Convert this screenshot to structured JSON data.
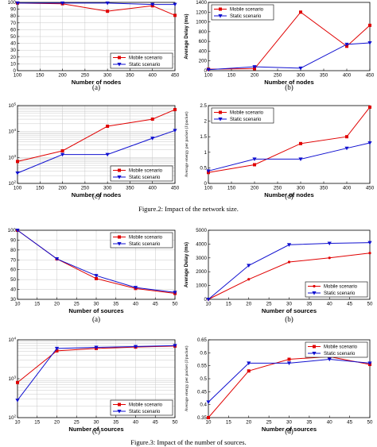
{
  "captions": {
    "figure2": "Figure.2:   Impact of the network size.",
    "figure3": "Figure.3:   Impact of the number of sources."
  },
  "colors": {
    "mobile": "#e00000",
    "static": "#1010d0",
    "grid": "#c8c8c8"
  },
  "chart_data": [
    {
      "type": "line",
      "panel": "(a)",
      "xlabel": "Number of nodes",
      "ylabel": "Packet Delivery Fraction (%)",
      "x": [
        100,
        200,
        300,
        400,
        450
      ],
      "xticks": [
        100,
        150,
        200,
        250,
        300,
        350,
        400,
        450
      ],
      "xlim": [
        100,
        450
      ],
      "ylim": [
        0,
        100
      ],
      "yticks": [
        0,
        10,
        20,
        30,
        40,
        50,
        60,
        70,
        80,
        90,
        100
      ],
      "yscale": "linear",
      "grid": true,
      "legend": "bottom-right",
      "series": [
        {
          "name": "Mobile scenario",
          "marker": "square",
          "color": "#e00000",
          "values": [
            99,
            98,
            87,
            95,
            81
          ]
        },
        {
          "name": "Static scenario",
          "marker": "tri-down",
          "color": "#1010d0",
          "values": [
            99,
            99,
            99,
            97,
            97
          ]
        }
      ]
    },
    {
      "type": "line",
      "panel": "(b)",
      "xlabel": "Number of nodes",
      "ylabel": "Average Delay (ms)",
      "x": [
        100,
        200,
        300,
        400,
        450
      ],
      "xticks": [
        100,
        150,
        200,
        250,
        300,
        350,
        400,
        450
      ],
      "xlim": [
        100,
        450
      ],
      "ylim": [
        0,
        1400
      ],
      "yticks": [
        0,
        200,
        400,
        600,
        800,
        1000,
        1200,
        1400
      ],
      "yscale": "linear",
      "grid": false,
      "legend": "top-left",
      "series": [
        {
          "name": "Mobile scenario",
          "marker": "square",
          "color": "#e00000",
          "values": [
            30,
            40,
            1200,
            500,
            930
          ]
        },
        {
          "name": "Static scenario",
          "marker": "tri-down",
          "color": "#1010d0",
          "values": [
            20,
            80,
            50,
            540,
            570
          ]
        }
      ]
    },
    {
      "type": "line",
      "panel": "(c)",
      "xlabel": "Number of nodes",
      "ylabel": "Routing Overheads (packets)",
      "x": [
        100,
        200,
        300,
        400,
        450
      ],
      "xticks": [
        100,
        150,
        200,
        250,
        300,
        350,
        400,
        450
      ],
      "xlim": [
        100,
        450
      ],
      "ylim": [
        100,
        100000
      ],
      "yticks_major": [
        100,
        1000,
        10000,
        100000
      ],
      "yticklabels": [
        "10^2",
        "10^3",
        "10^4",
        "10^5"
      ],
      "yscale": "log",
      "grid": true,
      "legend": "bottom-right",
      "series": [
        {
          "name": "Mobile scenario",
          "marker": "square",
          "color": "#e00000",
          "values": [
            700,
            1800,
            16000,
            30000,
            70000
          ]
        },
        {
          "name": "Static scenario",
          "marker": "tri-down",
          "color": "#1010d0",
          "values": [
            250,
            1300,
            1300,
            5500,
            11000
          ]
        }
      ]
    },
    {
      "type": "line",
      "panel": "(d)",
      "xlabel": "Number of nodes",
      "ylabel": "Average energy per packet (J/packet)",
      "x": [
        100,
        200,
        300,
        400,
        450
      ],
      "xticks": [
        100,
        150,
        200,
        250,
        300,
        350,
        400,
        450
      ],
      "xlim": [
        100,
        450
      ],
      "ylim": [
        0,
        2.5
      ],
      "yticks": [
        0,
        0.5,
        1,
        1.5,
        2,
        2.5
      ],
      "yscale": "linear",
      "grid": false,
      "legend": "top-left",
      "series": [
        {
          "name": "Mobile scenario",
          "marker": "square",
          "color": "#e00000",
          "values": [
            0.35,
            0.6,
            1.28,
            1.5,
            2.45
          ]
        },
        {
          "name": "Static scenario",
          "marker": "tri-down",
          "color": "#1010d0",
          "values": [
            0.4,
            0.78,
            0.78,
            1.13,
            1.3
          ]
        }
      ]
    },
    {
      "type": "line",
      "panel": "(a)",
      "xlabel": "Number of sources",
      "ylabel": "Packet Delivery Fraction (%)",
      "x": [
        10,
        20,
        30,
        40,
        50
      ],
      "xticks": [
        10,
        15,
        20,
        25,
        30,
        35,
        40,
        45,
        50
      ],
      "xlim": [
        10,
        50
      ],
      "ylim": [
        30,
        100
      ],
      "yticks": [
        30,
        40,
        50,
        60,
        70,
        80,
        90,
        100
      ],
      "yscale": "linear",
      "grid": true,
      "legend": "top-right",
      "series": [
        {
          "name": "Mobile scenario",
          "marker": "square",
          "color": "#e00000",
          "values": [
            100,
            71,
            51,
            41,
            36
          ]
        },
        {
          "name": "Static scenario",
          "marker": "tri-down",
          "color": "#1010d0",
          "values": [
            100,
            71,
            54,
            42,
            37
          ]
        }
      ]
    },
    {
      "type": "line",
      "panel": "(b)",
      "xlabel": "Number of sources",
      "ylabel": "Average Delay (ms)",
      "x": [
        10,
        20,
        30,
        40,
        50
      ],
      "xticks": [
        10,
        15,
        20,
        25,
        30,
        35,
        40,
        45,
        50
      ],
      "xlim": [
        10,
        50
      ],
      "ylim": [
        0,
        5000
      ],
      "yticks": [
        0,
        1000,
        2000,
        3000,
        4000,
        5000
      ],
      "yscale": "linear",
      "grid": false,
      "legend": "bottom-right",
      "series": [
        {
          "name": "Mobile scenario",
          "marker": "dot",
          "color": "#e00000",
          "values": [
            0,
            1450,
            2700,
            3000,
            3350
          ]
        },
        {
          "name": "Static scenario",
          "marker": "tri-down",
          "color": "#1010d0",
          "values": [
            0,
            2450,
            3950,
            4050,
            4100
          ]
        }
      ]
    },
    {
      "type": "line",
      "panel": "(c)",
      "xlabel": "Number of sources",
      "ylabel": "Routing Overheads (packets)",
      "x": [
        10,
        20,
        30,
        40,
        50
      ],
      "xticks": [
        10,
        15,
        20,
        25,
        30,
        35,
        40,
        45,
        50
      ],
      "xlim": [
        10,
        50
      ],
      "ylim": [
        100,
        10000
      ],
      "yticks_major": [
        100,
        1000,
        10000
      ],
      "yticklabels": [
        "10^2",
        "10^3",
        "10^4"
      ],
      "yscale": "log",
      "grid": true,
      "legend": "bottom-right",
      "series": [
        {
          "name": "Mobile scenario",
          "marker": "square",
          "color": "#e00000",
          "values": [
            800,
            5200,
            6000,
            6500,
            6900
          ]
        },
        {
          "name": "Static scenario",
          "marker": "tri-down",
          "color": "#1010d0",
          "values": [
            280,
            6000,
            6400,
            6700,
            7100
          ]
        }
      ]
    },
    {
      "type": "line",
      "panel": "(d)",
      "xlabel": "Number of sources",
      "ylabel": "Average energy per packet (J/packet)",
      "x": [
        10,
        20,
        30,
        40,
        50
      ],
      "xticks": [
        10,
        15,
        20,
        25,
        30,
        35,
        40,
        45,
        50
      ],
      "xlim": [
        10,
        50
      ],
      "ylim": [
        0.35,
        0.65
      ],
      "yticks": [
        0.35,
        0.4,
        0.45,
        0.5,
        0.55,
        0.6,
        0.65
      ],
      "yscale": "linear",
      "grid": false,
      "legend": "top-right",
      "series": [
        {
          "name": "Mobile scenario",
          "marker": "square",
          "color": "#e00000",
          "values": [
            0.35,
            0.53,
            0.575,
            0.585,
            0.555
          ]
        },
        {
          "name": "Static scenario",
          "marker": "tri-down",
          "color": "#1010d0",
          "values": [
            0.41,
            0.56,
            0.56,
            0.575,
            0.56
          ]
        }
      ]
    }
  ]
}
